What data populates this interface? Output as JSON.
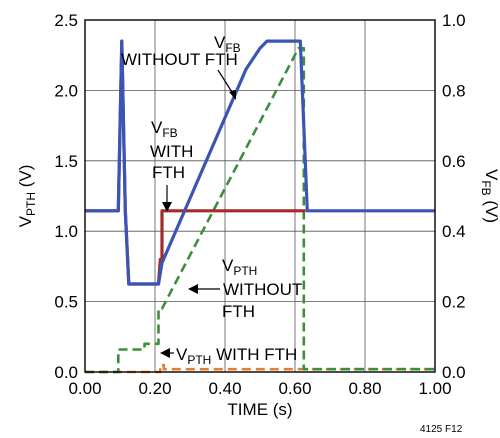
{
  "chart_data": {
    "type": "line",
    "xlabel": "TIME (s)",
    "ylabel_left": "VPTH (V)",
    "ylabel_right": "VFB (V)",
    "xlim": [
      0,
      1.0
    ],
    "ylim_left": [
      0,
      2.5
    ],
    "ylim_right": [
      0,
      1.0
    ],
    "grid": true,
    "x_ticks": [
      "0.00",
      "0.20",
      "0.40",
      "0.60",
      "0.80",
      "1.00"
    ],
    "y_left_ticks": [
      "0.0",
      "0.5",
      "1.0",
      "1.5",
      "2.0",
      "2.5"
    ],
    "y_right_ticks": [
      "0.0",
      "0.2",
      "0.4",
      "0.6",
      "0.8",
      "1.0"
    ],
    "figure_id": "4125 F12",
    "annotations": {
      "vfb_without_fth": [
        "VFB",
        "WITHOUT FTH"
      ],
      "vfb_with_fth": [
        "VFB",
        "WITH",
        "FTH"
      ],
      "vpth_without_fth": [
        "VPTH",
        "WITHOUT",
        "FTH"
      ],
      "vpth_with_fth": "VPTH WITH FTH"
    },
    "series": [
      {
        "name": "VPTH WITH FTH",
        "axis": "left",
        "color": "#e87d2c",
        "style": "dashed",
        "points": [
          [
            0,
            0
          ],
          [
            0.215,
            0
          ],
          [
            0.215,
            0.05
          ],
          [
            0.225,
            0.05
          ],
          [
            0.225,
            0.02
          ],
          [
            1.0,
            0.02
          ]
        ]
      },
      {
        "name": "VPTH WITHOUT FTH",
        "axis": "left",
        "color": "#3b8f3b",
        "style": "dashed",
        "points": [
          [
            0,
            0
          ],
          [
            0.095,
            0
          ],
          [
            0.095,
            0.16
          ],
          [
            0.17,
            0.16
          ],
          [
            0.17,
            0.2
          ],
          [
            0.21,
            0.2
          ],
          [
            0.21,
            0.45
          ],
          [
            0.22,
            0.45
          ],
          [
            0.61,
            2.3
          ],
          [
            0.625,
            2.3
          ],
          [
            0.625,
            0.02
          ],
          [
            1.0,
            0.02
          ]
        ]
      },
      {
        "name": "VFB WITH FTH",
        "axis": "right",
        "color": "#a52a2a",
        "style": "solid",
        "points": [
          [
            0,
            0.458
          ],
          [
            0.095,
            0.458
          ],
          [
            0.105,
            0.94
          ],
          [
            0.115,
            0.458
          ],
          [
            0.125,
            0.25
          ],
          [
            0.21,
            0.25
          ],
          [
            0.215,
            0.32
          ],
          [
            0.22,
            0.32
          ],
          [
            0.22,
            0.458
          ],
          [
            0.63,
            0.458
          ]
        ]
      },
      {
        "name": "VFB WITHOUT FTH",
        "axis": "right",
        "color": "#3a55b5",
        "style": "solid",
        "points": [
          [
            0,
            0.458
          ],
          [
            0.095,
            0.458
          ],
          [
            0.105,
            0.94
          ],
          [
            0.115,
            0.458
          ],
          [
            0.125,
            0.25
          ],
          [
            0.2,
            0.25
          ],
          [
            0.21,
            0.25
          ],
          [
            0.22,
            0.31
          ],
          [
            0.46,
            0.86
          ],
          [
            0.5,
            0.92
          ],
          [
            0.52,
            0.94
          ],
          [
            0.615,
            0.94
          ],
          [
            0.635,
            0.458
          ],
          [
            1.0,
            0.458
          ]
        ]
      }
    ]
  }
}
